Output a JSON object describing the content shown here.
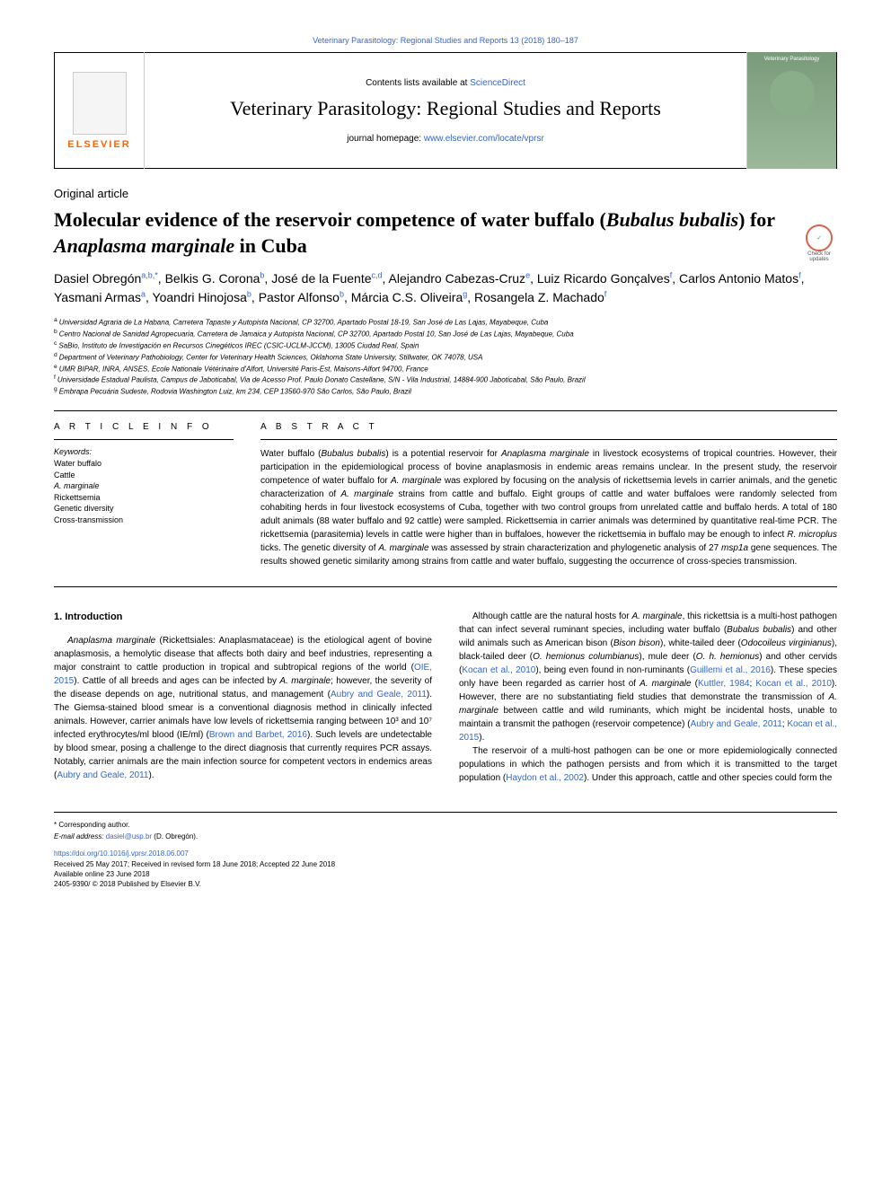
{
  "top_link": "Veterinary Parasitology: Regional Studies and Reports 13 (2018) 180–187",
  "header": {
    "contents_prefix": "Contents lists available at ",
    "contents_link": "ScienceDirect",
    "journal_title": "Veterinary Parasitology: Regional Studies and Reports",
    "homepage_prefix": "journal homepage: ",
    "homepage_link": "www.elsevier.com/locate/vprsr",
    "publisher": "ELSEVIER",
    "cover_text": "Veterinary Parasitology"
  },
  "article": {
    "type": "Original article",
    "title_part1": "Molecular evidence of the reservoir competence of water buffalo (",
    "title_italic1": "Bubalus bubalis",
    "title_part2": ") for ",
    "title_italic2": "Anaplasma marginale",
    "title_part3": " in Cuba",
    "check_label": "Check for updates"
  },
  "authors": [
    {
      "name": "Dasiel Obregón",
      "sup": "a,b,*"
    },
    {
      "name": "Belkis G. Corona",
      "sup": "b"
    },
    {
      "name": "José de la Fuente",
      "sup": "c,d"
    },
    {
      "name": "Alejandro Cabezas-Cruz",
      "sup": "e"
    },
    {
      "name": "Luiz Ricardo Gonçalves",
      "sup": "f"
    },
    {
      "name": "Carlos Antonio Matos",
      "sup": "f"
    },
    {
      "name": "Yasmani Armas",
      "sup": "a"
    },
    {
      "name": "Yoandri Hinojosa",
      "sup": "b"
    },
    {
      "name": "Pastor Alfonso",
      "sup": "b"
    },
    {
      "name": "Márcia C.S. Oliveira",
      "sup": "g"
    },
    {
      "name": "Rosangela Z. Machado",
      "sup": "f"
    }
  ],
  "affiliations": [
    {
      "sup": "a",
      "text": "Universidad Agraria de La Habana, Carretera Tapaste y Autopista Nacional, CP 32700, Apartado Postal 18-19, San José de Las Lajas, Mayabeque, Cuba"
    },
    {
      "sup": "b",
      "text": "Centro Nacional de Sanidad Agropecuaria, Carretera de Jamaica y Autopista Nacional, CP 32700, Apartado Postal 10, San José de Las Lajas, Mayabeque, Cuba"
    },
    {
      "sup": "c",
      "text": "SaBio, Instituto de Investigación en Recursos Cinegéticos IREC (CSIC-UCLM-JCCM), 13005 Ciudad Real, Spain"
    },
    {
      "sup": "d",
      "text": "Department of Veterinary Pathobiology, Center for Veterinary Health Sciences, Oklahoma State University, Stillwater, OK 74078, USA"
    },
    {
      "sup": "e",
      "text": "UMR BIPAR, INRA, ANSES, Ecole Nationale Vétérinaire d'Alfort, Université Paris-Est, Maisons-Alfort 94700, France"
    },
    {
      "sup": "f",
      "text": "Universidade Estadual Paulista, Campus de Jaboticabal, Via de Acesso Prof. Paulo Donato Castellane, S/N - Vila Industrial, 14884-900 Jaboticabal, São Paulo, Brazil"
    },
    {
      "sup": "g",
      "text": "Embrapa Pecuária Sudeste, Rodovia Washington Luiz, km 234, CEP 13560-970 São Carlos, São Paulo, Brazil"
    }
  ],
  "info": {
    "heading": "A R T I C L E  I N F O",
    "keywords_label": "Keywords:",
    "keywords": [
      "Water buffalo",
      "Cattle",
      "A. marginale",
      "Rickettsemia",
      "Genetic diversity",
      "Cross-transmission"
    ]
  },
  "abstract": {
    "heading": "A B S T R A C T",
    "text": "Water buffalo (Bubalus bubalis) is a potential reservoir for Anaplasma marginale in livestock ecosystems of tropical countries. However, their participation in the epidemiological process of bovine anaplasmosis in endemic areas remains unclear. In the present study, the reservoir competence of water buffalo for A. marginale was explored by focusing on the analysis of rickettsemia levels in carrier animals, and the genetic characterization of A. marginale strains from cattle and buffalo. Eight groups of cattle and water buffaloes were randomly selected from cohabiting herds in four livestock ecosystems of Cuba, together with two control groups from unrelated cattle and buffalo herds. A total of 180 adult animals (88 water buffalo and 92 cattle) were sampled. Rickettsemia in carrier animals was determined by quantitative real-time PCR. The rickettsemia (parasitemia) levels in cattle were higher than in buffaloes, however the rickettsemia in buffalo may be enough to infect R. microplus ticks. The genetic diversity of A. marginale was assessed by strain characterization and phylogenetic analysis of 27 msp1a gene sequences. The results showed genetic similarity among strains from cattle and water buffalo, suggesting the occurrence of cross-species transmission."
  },
  "body": {
    "section_heading": "1. Introduction",
    "para1": "Anaplasma marginale (Rickettsiales: Anaplasmataceae) is the etiological agent of bovine anaplasmosis, a hemolytic disease that affects both dairy and beef industries, representing a major constraint to cattle production in tropical and subtropical regions of the world (OIE, 2015). Cattle of all breeds and ages can be infected by A. marginale; however, the severity of the disease depends on age, nutritional status, and management (Aubry and Geale, 2011). The Giemsa-stained blood smear is a conventional diagnosis method in clinically infected animals. However, carrier animals have low levels of rickettsemia ranging between 10³ and 10⁷ infected erythrocytes/ml blood (IE/ml) (Brown and Barbet, 2016). Such levels are undetectable by blood smear, posing a challenge to the direct diagnosis that currently requires PCR assays. Notably, carrier animals are the main infection source for competent vectors in endemics areas (Aubry and Geale, 2011).",
    "para2": "Although cattle are the natural hosts for A. marginale, this rickettsia is a multi-host pathogen that can infect several ruminant species, including water buffalo (Bubalus bubalis) and other wild animals such as American bison (Bison bison), white-tailed deer (Odocoileus virginianus), black-tailed deer (O. hemionus columbianus), mule deer (O. h. hemionus) and other cervids (Kocan et al., 2010), being even found in non-ruminants (Guillemi et al., 2016). These species only have been regarded as carrier host of A. marginale (Kuttler, 1984; Kocan et al., 2010). However, there are no substantiating field studies that demonstrate the transmission of A. marginale between cattle and wild ruminants, which might be incidental hosts, unable to maintain a transmit the pathogen (reservoir competence) (Aubry and Geale, 2011; Kocan et al., 2015).",
    "para3": "The reservoir of a multi-host pathogen can be one or more epidemiologically connected populations in which the pathogen persists and from which it is transmitted to the target population (Haydon et al., 2002). Under this approach, cattle and other species could form the"
  },
  "footer": {
    "corresponding_marker": "* ",
    "corresponding_text": "Corresponding author.",
    "email_label": "E-mail address: ",
    "email": "dasiel@usp.br",
    "email_name": " (D. Obregón).",
    "doi": "https://doi.org/10.1016/j.vprsr.2018.06.007",
    "received": "Received 25 May 2017; Received in revised form 18 June 2018; Accepted 22 June 2018",
    "available": "Available online 23 June 2018",
    "copyright": "2405-9390/ © 2018 Published by Elsevier B.V."
  },
  "colors": {
    "link": "#3366cc",
    "elsevier": "#ff6600",
    "cover_bg": "#7a9b7a",
    "check_border": "#d4634e",
    "check_inner": "#3ba3a3"
  }
}
